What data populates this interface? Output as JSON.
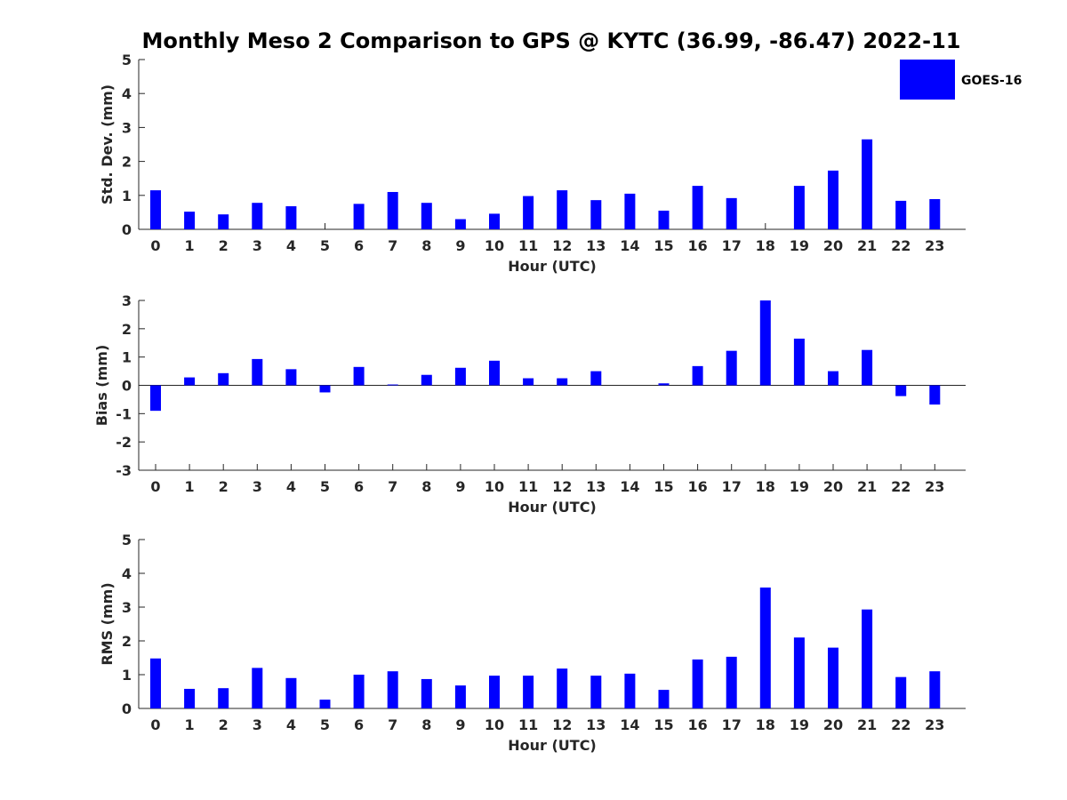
{
  "title": "Monthly Meso 2 Comparison to GPS @ KYTC (36.99, -86.47) 2022-11",
  "legend": {
    "label": "GOES-16",
    "color": "#0000ff",
    "placement": "top-right"
  },
  "chart_data": [
    {
      "type": "bar",
      "x": [
        0,
        1,
        2,
        3,
        4,
        5,
        6,
        7,
        8,
        9,
        10,
        11,
        12,
        13,
        14,
        15,
        16,
        17,
        18,
        19,
        20,
        21,
        22,
        23
      ],
      "values": [
        1.15,
        0.52,
        0.44,
        0.78,
        0.68,
        0,
        0.75,
        1.1,
        0.78,
        0.3,
        0.46,
        0.98,
        1.15,
        0.86,
        1.05,
        0.55,
        1.28,
        0.92,
        0,
        1.28,
        1.73,
        2.65,
        0.84,
        0.89
      ],
      "xlabel": "Hour (UTC)",
      "ylabel": "Std. Dev. (mm)",
      "ylim": [
        0,
        5
      ],
      "yticks": [
        0,
        1,
        2,
        3,
        4,
        5
      ],
      "color": "#0000ff"
    },
    {
      "type": "bar",
      "x": [
        0,
        1,
        2,
        3,
        4,
        5,
        6,
        7,
        8,
        9,
        10,
        11,
        12,
        13,
        14,
        15,
        16,
        17,
        18,
        19,
        20,
        21,
        22,
        23
      ],
      "values": [
        -0.9,
        0.28,
        0.43,
        0.93,
        0.57,
        -0.25,
        0.65,
        0.03,
        0.37,
        0.62,
        0.87,
        0.25,
        0.25,
        0.5,
        0,
        0.07,
        0.68,
        1.22,
        3.0,
        1.65,
        0.5,
        1.25,
        -0.38,
        -0.68
      ],
      "xlabel": "Hour (UTC)",
      "ylabel": "Bias (mm)",
      "ylim": [
        -3,
        3
      ],
      "yticks": [
        -3,
        -2,
        -1,
        0,
        1,
        2,
        3
      ],
      "color": "#0000ff"
    },
    {
      "type": "bar",
      "x": [
        0,
        1,
        2,
        3,
        4,
        5,
        6,
        7,
        8,
        9,
        10,
        11,
        12,
        13,
        14,
        15,
        16,
        17,
        18,
        19,
        20,
        21,
        22,
        23
      ],
      "values": [
        1.48,
        0.58,
        0.6,
        1.2,
        0.9,
        0.26,
        1.0,
        1.1,
        0.87,
        0.68,
        0.97,
        0.97,
        1.18,
        0.97,
        1.03,
        0.55,
        1.45,
        1.53,
        3.58,
        2.1,
        1.8,
        2.93,
        0.93,
        1.1
      ],
      "xlabel": "Hour (UTC)",
      "ylabel": "RMS (mm)",
      "ylim": [
        0,
        5
      ],
      "yticks": [
        0,
        1,
        2,
        3,
        4,
        5
      ],
      "color": "#0000ff"
    }
  ]
}
